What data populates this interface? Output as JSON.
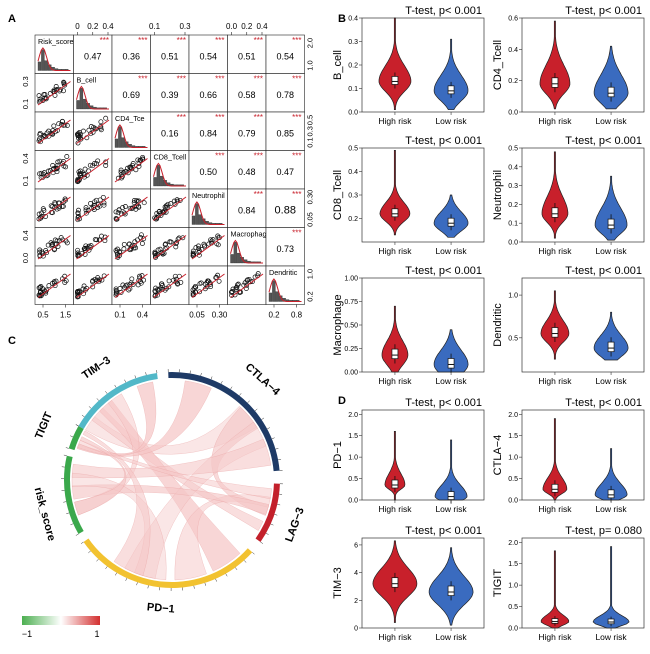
{
  "panels": {
    "a": "A",
    "b": "B",
    "c": "C",
    "d": "D"
  },
  "colors": {
    "high": "#c8202b",
    "low": "#3a6bbf",
    "chord_pos": "#f5c7c7",
    "chord_ring_tim3": "#52b8c8",
    "chord_ring_ctla4": "#1e3a66",
    "chord_ring_lag3": "#c3202b",
    "chord_ring_pd1": "#f2c230",
    "chord_ring_risk": "#3aa84b",
    "chord_ring_tigit": "#3aa84b"
  },
  "matrix": {
    "vars": [
      "Risk_score",
      "B_cell",
      "CD4_Tcell",
      "CD8_Tcell",
      "Neutrophil",
      "Macrophage",
      "Dendritic"
    ],
    "diag_labels": [
      "Risk_score",
      "B_cell",
      "CD4_Tce",
      "CD8_Tcell",
      "Neutrophil",
      "Macrophag",
      "Dendritic"
    ],
    "correlations": [
      [
        "0.47",
        "0.36",
        "0.51",
        "0.54",
        "0.51",
        "0.54"
      ],
      [
        "0.69",
        "0.39",
        "0.66",
        "0.58",
        "0.78"
      ],
      [
        "0.16",
        "0.84",
        "0.79",
        "0.85"
      ],
      [
        "0.50",
        "0.48",
        "0.47"
      ],
      [
        "0.84",
        "0.88"
      ],
      [
        "0.73"
      ]
    ],
    "stars": "***",
    "top_axis": [
      {
        "col": 1,
        "ticks": [
          "0",
          "0.2",
          "0.4"
        ]
      },
      {
        "col": 3,
        "ticks": [
          "0.1",
          "0.3"
        ]
      },
      {
        "col": 5,
        "ticks": [
          "0.0",
          "0.2",
          "0.4"
        ]
      }
    ],
    "bottom_axis": [
      {
        "col": 0,
        "ticks": [
          "0.5",
          "1.5"
        ]
      },
      {
        "col": 2,
        "ticks": [
          "0.1",
          "0.4"
        ]
      },
      {
        "col": 4,
        "ticks": [
          "0.05",
          "0.30"
        ]
      },
      {
        "col": 6,
        "ticks": [
          "0.2",
          "0.8"
        ]
      }
    ],
    "left_axis": [
      {
        "row": 1,
        "ticks": [
          "0.3",
          "0.1"
        ]
      },
      {
        "row": 3,
        "ticks": [
          "0.4",
          "0.1"
        ]
      },
      {
        "row": 5,
        "ticks": [
          "0.4",
          "0.0"
        ]
      }
    ],
    "right_axis": [
      {
        "row": 0,
        "ticks": [
          "2.0",
          "1.0"
        ]
      },
      {
        "row": 2,
        "ticks": [
          "0.5",
          "0.3",
          "0.1"
        ]
      },
      {
        "row": 4,
        "ticks": [
          "0.30",
          "0.05"
        ]
      },
      {
        "row": 6,
        "ticks": [
          "1.0",
          "0.2"
        ]
      }
    ]
  },
  "chart_data": [
    {
      "type": "violin",
      "ylabel": "B_cell",
      "test": "T-test, p< 0.001",
      "categories": [
        "High risk",
        "Low risk"
      ],
      "ylim": [
        0,
        0.4
      ],
      "yticks": [
        "0.0",
        "0.1",
        "0.2",
        "0.3",
        "0.4"
      ],
      "medians": [
        0.13,
        0.09
      ]
    },
    {
      "type": "violin",
      "ylabel": "CD4_Tcell",
      "test": "T-test, p< 0.001",
      "categories": [
        "High risk",
        "Low risk"
      ],
      "ylim": [
        0,
        0.6
      ],
      "yticks": [
        "0.0",
        "0.2",
        "0.4",
        "0.6"
      ],
      "medians": [
        0.18,
        0.12
      ]
    },
    {
      "type": "violin",
      "ylabel": "CD8_Tcell",
      "test": "T-test, p< 0.001",
      "categories": [
        "High risk",
        "Low risk"
      ],
      "ylim": [
        0.1,
        0.5
      ],
      "yticks": [
        "0.2",
        "0.3",
        "0.4",
        "0.5"
      ],
      "medians": [
        0.22,
        0.18
      ]
    },
    {
      "type": "violin",
      "ylabel": "Neutrophil",
      "test": "T-test, p< 0.001",
      "categories": [
        "High risk",
        "Low risk"
      ],
      "ylim": [
        0,
        0.5
      ],
      "yticks": [
        "0.0",
        "0.1",
        "0.2",
        "0.3",
        "0.4",
        "0.5"
      ],
      "medians": [
        0.15,
        0.09
      ]
    },
    {
      "type": "violin",
      "ylabel": "Macrophage",
      "test": "T-test, p< 0.001",
      "categories": [
        "High risk",
        "Low risk"
      ],
      "ylim": [
        0,
        1.0
      ],
      "yticks": [
        "0.00",
        "0.25",
        "0.50",
        "0.75",
        "1.00"
      ],
      "medians": [
        0.18,
        0.08
      ]
    },
    {
      "type": "violin",
      "ylabel": "Dendritic",
      "test": "T-test, p< 0.001",
      "categories": [
        "High risk",
        "Low risk"
      ],
      "ylim": [
        0.1,
        1.2
      ],
      "yticks": [
        "0.5",
        "1.0"
      ],
      "medians": [
        0.55,
        0.38
      ]
    },
    {
      "type": "violin",
      "ylabel": "PD−1",
      "test": "T-test, p< 0.001",
      "categories": [
        "High risk",
        "Low risk"
      ],
      "ylim": [
        0,
        2.1
      ],
      "yticks": [
        "0.0",
        "0.5",
        "1.0",
        "1.5",
        "2.0"
      ],
      "medians": [
        0.35,
        0.08
      ]
    },
    {
      "type": "violin",
      "ylabel": "CTLA−4",
      "test": "T-test, p< 0.001",
      "categories": [
        "High risk",
        "Low risk"
      ],
      "ylim": [
        0,
        2.1
      ],
      "yticks": [
        "0.0",
        "0.5",
        "1.0",
        "1.5",
        "2.0"
      ],
      "medians": [
        0.25,
        0.12
      ]
    },
    {
      "type": "violin",
      "ylabel": "TIM−3",
      "test": "T-test, p< 0.001",
      "categories": [
        "High risk",
        "Low risk"
      ],
      "ylim": [
        0,
        6.5
      ],
      "yticks": [
        "0",
        "2",
        "4",
        "6"
      ],
      "medians": [
        3.2,
        2.6
      ]
    },
    {
      "type": "violin",
      "ylabel": "TIGIT",
      "test": "T-test, p= 0.080",
      "categories": [
        "High risk",
        "Low risk"
      ],
      "ylim": [
        0,
        2.1
      ],
      "yticks": [
        "0.0",
        "0.5",
        "1.0",
        "1.5",
        "2.0"
      ],
      "medians": [
        0.15,
        0.14
      ]
    }
  ],
  "chord": {
    "sectors": [
      "TIM−3",
      "CTLA−4",
      "LAG−3",
      "PD−1",
      "risk_score",
      "TIGIT"
    ],
    "legend": {
      "min": "−1",
      "max": "1"
    }
  }
}
